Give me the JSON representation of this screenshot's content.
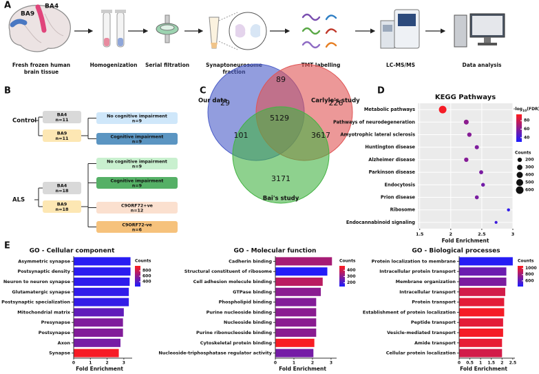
{
  "panel_labels": [
    "A",
    "B",
    "C",
    "D",
    "E"
  ],
  "workflow": {
    "regions": [
      {
        "label": "BA9",
        "color": "#4a78c2"
      },
      {
        "label": "BA4",
        "color": "#e0457b"
      }
    ],
    "steps": [
      [
        "Fresh frozen human",
        "brain tissue"
      ],
      [
        "Homogenization"
      ],
      [
        "Serial filtration"
      ],
      [
        "Synaptoneurosome",
        "fraction"
      ],
      [
        "TMT labelling"
      ],
      [
        "LC-MS/MS"
      ],
      [
        "Data analysis"
      ]
    ]
  },
  "design": {
    "groups": [
      {
        "name": "Control",
        "regions": [
          {
            "label": "BA4",
            "n": "n=11",
            "color": "#d9d9d9"
          },
          {
            "label": "BA9",
            "n": "n=11",
            "color": "#fde7b3"
          }
        ],
        "subgroups": [
          {
            "label": "No cognitive impairment",
            "n": "n=9",
            "color": "#cfe7fa"
          },
          {
            "label": "Cognitive impairment",
            "n": "n=9",
            "color": "#5b95c2"
          }
        ]
      },
      {
        "name": "ALS",
        "regions": [
          {
            "label": "BA4",
            "n": "n=18",
            "color": "#d9d9d9"
          },
          {
            "label": "BA9",
            "n": "n=18",
            "color": "#fde7b3"
          }
        ],
        "subgroups": [
          {
            "label": "No cognitive impairment",
            "n": "n=9",
            "color": "#c9f0cf"
          },
          {
            "label": "Cognitive impairment",
            "n": "n=9",
            "color": "#55b066"
          },
          {
            "label": "C9ORF72+ve",
            "n": "n=12",
            "color": "#fbe0cf"
          },
          {
            "label": "C9ORF72-ve",
            "n": "n=6",
            "color": "#f6c27c"
          }
        ]
      }
    ]
  },
  "venn": {
    "sets": [
      {
        "name": "Our data",
        "color": "#4a5cc8"
      },
      {
        "name": "Carlyle's study",
        "color": "#e05454"
      },
      {
        "name": "Bai's study",
        "color": "#43b343"
      }
    ],
    "counts": {
      "only_ours": 29,
      "ours_carlyle": 89,
      "only_carlyle": 226,
      "all": 5129,
      "ours_bai": 101,
      "carlyle_bai": 3617,
      "only_bai": 3171
    }
  },
  "chart_data": [
    {
      "type": "dot",
      "title": "KEGG Pathways",
      "categories": [
        "Metabolic pathways",
        "Pathways of neurodegeneration",
        "Amyotrophic lateral sclerosis",
        "Huntington disease",
        "Alzheimer disease",
        "Parkinson disease",
        "Endocytosis",
        "Prion disease",
        "Ribosome",
        "Endocannabinoid signaling"
      ],
      "values": [
        1.87,
        2.25,
        2.3,
        2.42,
        2.25,
        2.49,
        2.52,
        2.42,
        2.93,
        2.73
      ],
      "color_values": [
        92,
        62,
        60,
        58,
        60,
        57,
        55,
        57,
        36,
        40
      ],
      "size_values": [
        600,
        250,
        200,
        180,
        200,
        170,
        150,
        160,
        100,
        90
      ],
      "x_label": "Fold Enrichment",
      "xlim": [
        1.47,
        3.0
      ],
      "xticks": [
        1.5,
        2,
        2.5,
        3
      ],
      "grid": true,
      "color_label": [
        "-log",
        "10",
        "(FDR)"
      ],
      "clim": [
        30,
        95
      ],
      "cticks": [
        80,
        60,
        40
      ],
      "colorscale": [
        "#1c1cff",
        "#ff1c1c"
      ],
      "size_label": "Counts",
      "size_ticks": [
        200,
        300,
        400,
        500,
        600
      ]
    },
    {
      "type": "barh",
      "title": "GO - Cellular component",
      "categories": [
        "Asymmetric synapse",
        "Postsynaptic density",
        "Neuron to neuron synapse",
        "Glutamatergic synapse",
        "Postsynaptic specialization",
        "Mitochondrial matrix",
        "Presynapse",
        "Postsynapse",
        "Axon",
        "Synapse"
      ],
      "values": [
        3.4,
        3.4,
        3.35,
        3.3,
        3.3,
        3.0,
        2.95,
        2.95,
        2.8,
        2.7
      ],
      "color_values": [
        260,
        270,
        280,
        290,
        300,
        450,
        550,
        560,
        520,
        950
      ],
      "x_label": "Fold Enrichment",
      "xlim": [
        0,
        3.5
      ],
      "xticks": [
        0,
        1,
        2,
        3
      ],
      "color_label": "Counts",
      "clim": [
        220,
        980
      ],
      "cticks": [
        800,
        600,
        400
      ],
      "colorscale": [
        "#1c1cff",
        "#ff1c1c"
      ]
    },
    {
      "type": "barh",
      "title": "GO - Molecular function",
      "categories": [
        "Cadherin binding",
        "Structural constituent of ribosome",
        "Cell adhesion molecule binding",
        "GTPase binding",
        "Phospholipid binding",
        "Purine nucleoside binding",
        "Nucleoside binding",
        "Purine ribonucleoside binding",
        "Cytoskeletal protein binding",
        "Nucleoside-triphosphatase regulator activity"
      ],
      "values": [
        3.05,
        2.8,
        2.55,
        2.45,
        2.2,
        2.2,
        2.2,
        2.2,
        2.1,
        2.05
      ],
      "color_values": [
        340,
        150,
        370,
        300,
        290,
        300,
        300,
        300,
        460,
        270
      ],
      "x_label": "Fold Enrichment",
      "xlim": [
        0,
        3.3
      ],
      "xticks": [
        0,
        1,
        2,
        3
      ],
      "color_label": "Counts",
      "clim": [
        140,
        470
      ],
      "cticks": [
        400,
        300,
        200
      ],
      "colorscale": [
        "#1c1cff",
        "#ff1c1c"
      ]
    },
    {
      "type": "barh",
      "title": "GO - Biological processes",
      "categories": [
        "Protein localization to membrane",
        "Intracellular protein transport",
        "Membrane organization",
        "Intracellular transport",
        "Protein transport",
        "Establishment of protein localization",
        "Peptide transport",
        "Vesicle-mediated transport",
        "Amide transport",
        "Cellular protein localization"
      ],
      "values": [
        2.5,
        2.2,
        2.2,
        2.15,
        2.1,
        2.1,
        2.05,
        2.05,
        2.0,
        2.0
      ],
      "color_values": [
        450,
        650,
        700,
        950,
        1000,
        1050,
        1000,
        1050,
        1010,
        950
      ],
      "x_label": "Fold Enrichment",
      "xlim": [
        0,
        2.6
      ],
      "xticks": [
        0,
        0.5,
        1,
        1.5,
        2,
        2.5
      ],
      "color_label": "Counts",
      "clim": [
        420,
        1080
      ],
      "cticks": [
        1000,
        800,
        600
      ],
      "colorscale": [
        "#1c1cff",
        "#ff1c1c"
      ]
    }
  ]
}
